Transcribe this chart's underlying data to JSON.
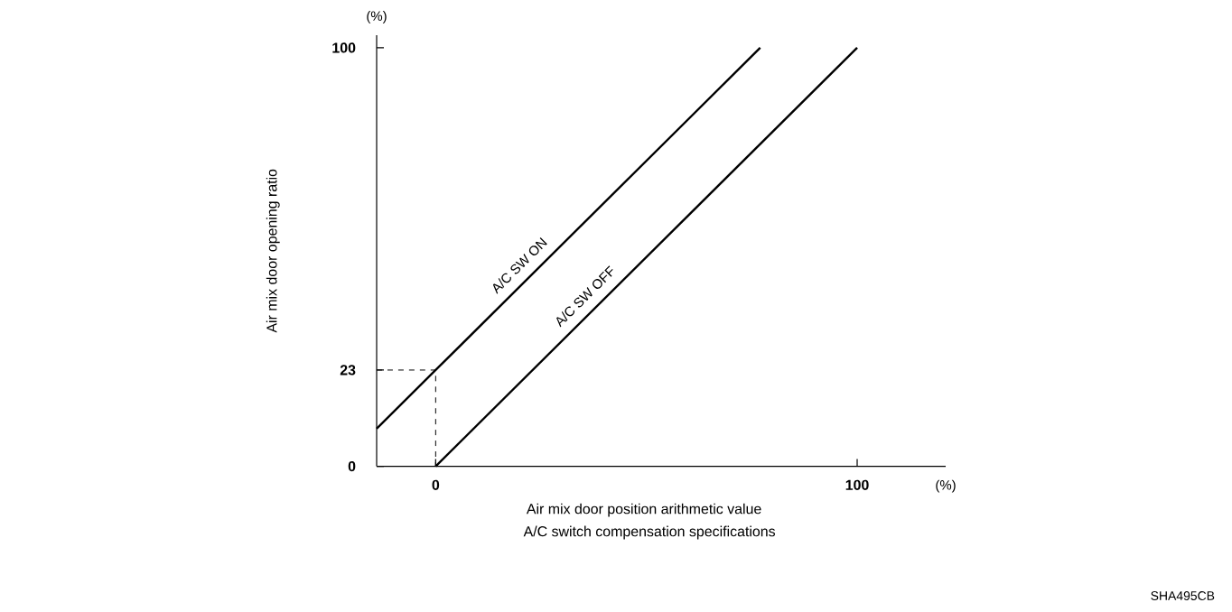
{
  "chart_data": {
    "type": "line",
    "xlabel": "Air mix door position arithmetic value",
    "ylabel": "Air mix door opening ratio",
    "annotations": [
      "A/C switch compensation specifications",
      "(%)",
      "(%)",
      "SHA495CB"
    ],
    "xlim": [
      -14,
      121
    ],
    "ylim": [
      0,
      103
    ],
    "xticks": [
      0,
      100
    ],
    "yticks": [
      0,
      23,
      100
    ],
    "series": [
      {
        "name": "A/C SW ON",
        "color": "#000000",
        "x": [
          -14,
          0,
          77
        ],
        "values": [
          9,
          23,
          100
        ]
      },
      {
        "name": "A/C SW OFF",
        "color": "#000000",
        "x": [
          0,
          100
        ],
        "values": [
          0,
          100
        ]
      },
      {
        "color": "#000000",
        "x": [
          -14,
          0,
          0
        ],
        "values": [
          23,
          23,
          0
        ],
        "line_style": "dashed"
      }
    ],
    "legend": false,
    "grid": false,
    "marker": "none",
    "line_style": "solid"
  }
}
